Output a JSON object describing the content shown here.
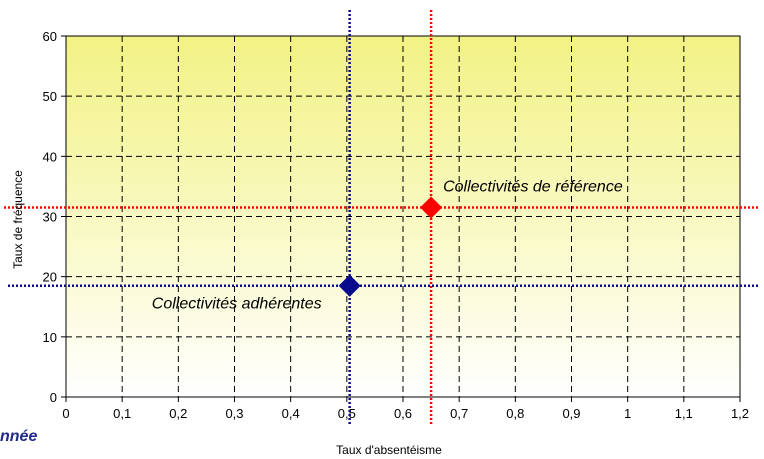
{
  "corner_text": "nnée",
  "chart_data": {
    "type": "scatter",
    "title": "",
    "xlabel": "Taux d'absentéisme",
    "ylabel": "Taux de fréquence",
    "xlim": [
      0,
      1.2
    ],
    "ylim": [
      0,
      60
    ],
    "x_ticks": [
      0,
      0.1,
      0.2,
      0.3,
      0.4,
      0.5,
      0.6,
      0.7,
      0.8,
      0.9,
      1,
      1.1,
      1.2
    ],
    "x_tick_labels": [
      "0",
      "0,1",
      "0,2",
      "0,3",
      "0,4",
      "0,5",
      "0,6",
      "0,7",
      "0,8",
      "0,9",
      "1",
      "1,1",
      "1,2"
    ],
    "y_ticks": [
      0,
      10,
      20,
      30,
      40,
      50,
      60
    ],
    "y_tick_labels": [
      "0",
      "10",
      "20",
      "30",
      "40",
      "50",
      "60"
    ],
    "grid": true,
    "background_gradient": [
      "#f2f284",
      "#ffffff"
    ],
    "series": [
      {
        "name": "Collectivités de référence",
        "x": 0.65,
        "y": 31.5,
        "color": "#ff0000",
        "marker": "diamond"
      },
      {
        "name": "Collectivités adhérentes",
        "x": 0.505,
        "y": 18.5,
        "color": "#0a0a8c",
        "marker": "diamond"
      }
    ]
  }
}
